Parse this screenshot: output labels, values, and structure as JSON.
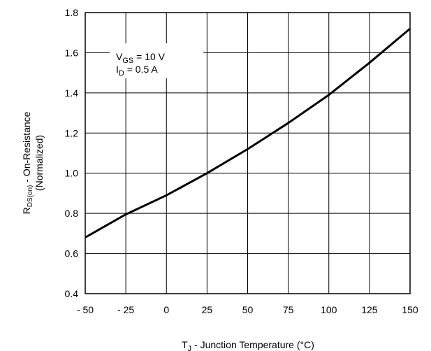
{
  "chart_data": {
    "type": "line",
    "xlabel": {
      "main": "T",
      "sub": "J",
      "rest": " - Junction Temperature (°C)"
    },
    "ylabel": {
      "line1_main": "R",
      "line1_sub": "DS(on)",
      "line1_rest": " - On-Resistance",
      "line2": "(Normalized)"
    },
    "xlim": [
      -50,
      150
    ],
    "ylim": [
      0.4,
      1.8
    ],
    "x_ticks": [
      -50,
      -25,
      0,
      25,
      50,
      75,
      100,
      125,
      150
    ],
    "x_tick_labels": [
      "- 50",
      "- 25",
      "0",
      "25",
      "50",
      "75",
      "100",
      "125",
      "150"
    ],
    "y_ticks": [
      0.4,
      0.6,
      0.8,
      1.0,
      1.2,
      1.4,
      1.6,
      1.8
    ],
    "y_tick_labels": [
      "0.4",
      "0.6",
      "0.8",
      "1.0",
      "1.2",
      "1.4",
      "1.6",
      "1.8"
    ],
    "grid": true,
    "annotations": [
      {
        "main": "V",
        "sub": "GS",
        "rest": " = 10 V"
      },
      {
        "main": "I",
        "sub": "D",
        "rest": " = 0.5 A"
      }
    ],
    "series": [
      {
        "color": "#000000",
        "x": [
          -50,
          -25,
          0,
          25,
          50,
          75,
          100,
          125,
          150
        ],
        "y": [
          0.68,
          0.795,
          0.89,
          1.0,
          1.12,
          1.25,
          1.39,
          1.55,
          1.72
        ]
      }
    ]
  }
}
